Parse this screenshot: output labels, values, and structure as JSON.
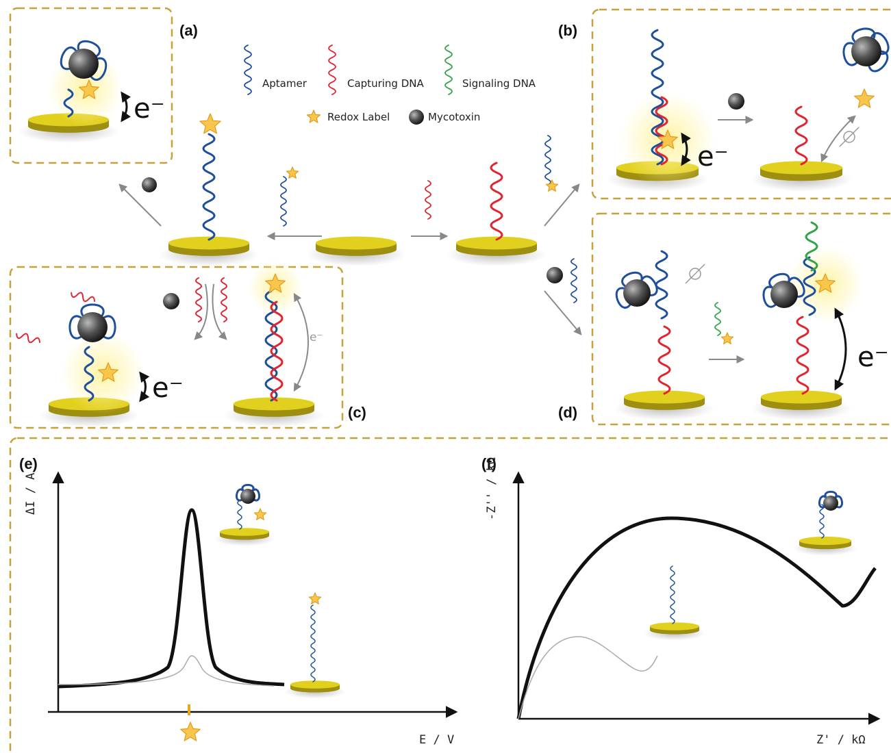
{
  "panel_labels": [
    "(a)",
    "(b)",
    "(c)",
    "(d)",
    "(e)",
    "(f)"
  ],
  "legend": [
    "Aptamer",
    "Capturing DNA",
    "Signaling DNA",
    "Redox Label",
    "Mycotoxin"
  ],
  "electron": "e⁻",
  "axes": {
    "e": {
      "y_label": "ΔI / A",
      "x_label": "E / V"
    },
    "f": {
      "y_label": "-Z'' / kΩ",
      "x_label": "Z' / kΩ"
    }
  }
}
